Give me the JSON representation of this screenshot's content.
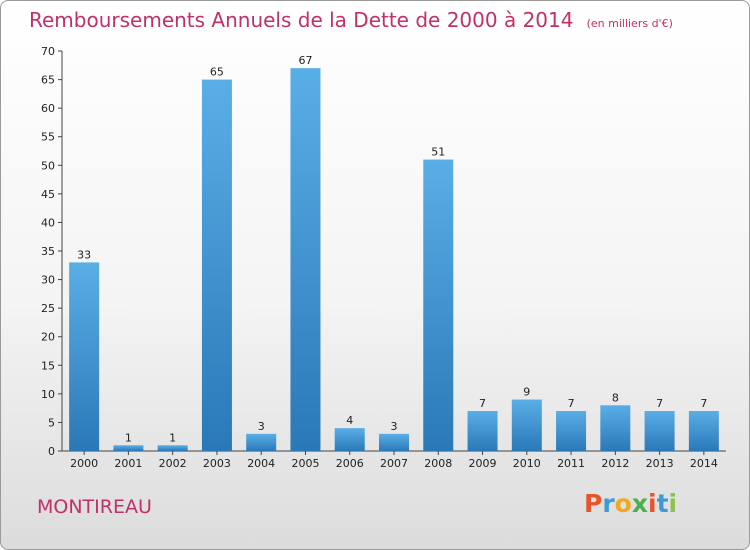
{
  "header": {
    "title": "Remboursements Annuels de la Dette de 2000 à 2014",
    "unit": "(en milliers d'€)"
  },
  "footer": {
    "commune": "MONTIREAU",
    "logo": "Proxiti"
  },
  "colors": {
    "title": "#c0306a",
    "bar_top": "#5aaee6",
    "bar_bottom": "#2a78b8",
    "logo": [
      "#e8542a",
      "#3d9ad6",
      "#f2a81c",
      "#4caf50",
      "#e8542a",
      "#3d9ad6",
      "#8bc34a"
    ]
  },
  "chart_data": {
    "type": "bar",
    "title": "Remboursements Annuels de la Dette de 2000 à 2014",
    "subtitle": "(en milliers d'€)",
    "xlabel": "",
    "ylabel": "",
    "categories": [
      "2000",
      "2001",
      "2002",
      "2003",
      "2004",
      "2005",
      "2006",
      "2007",
      "2008",
      "2009",
      "2010",
      "2011",
      "2012",
      "2013",
      "2014"
    ],
    "values": [
      33,
      1,
      1,
      65,
      3,
      67,
      4,
      3,
      51,
      7,
      9,
      7,
      8,
      7,
      7
    ],
    "ylim": [
      0,
      70
    ],
    "yticks": [
      0,
      5,
      10,
      15,
      20,
      25,
      30,
      35,
      40,
      45,
      50,
      55,
      60,
      65,
      70
    ],
    "grid": false,
    "legend": "none"
  }
}
